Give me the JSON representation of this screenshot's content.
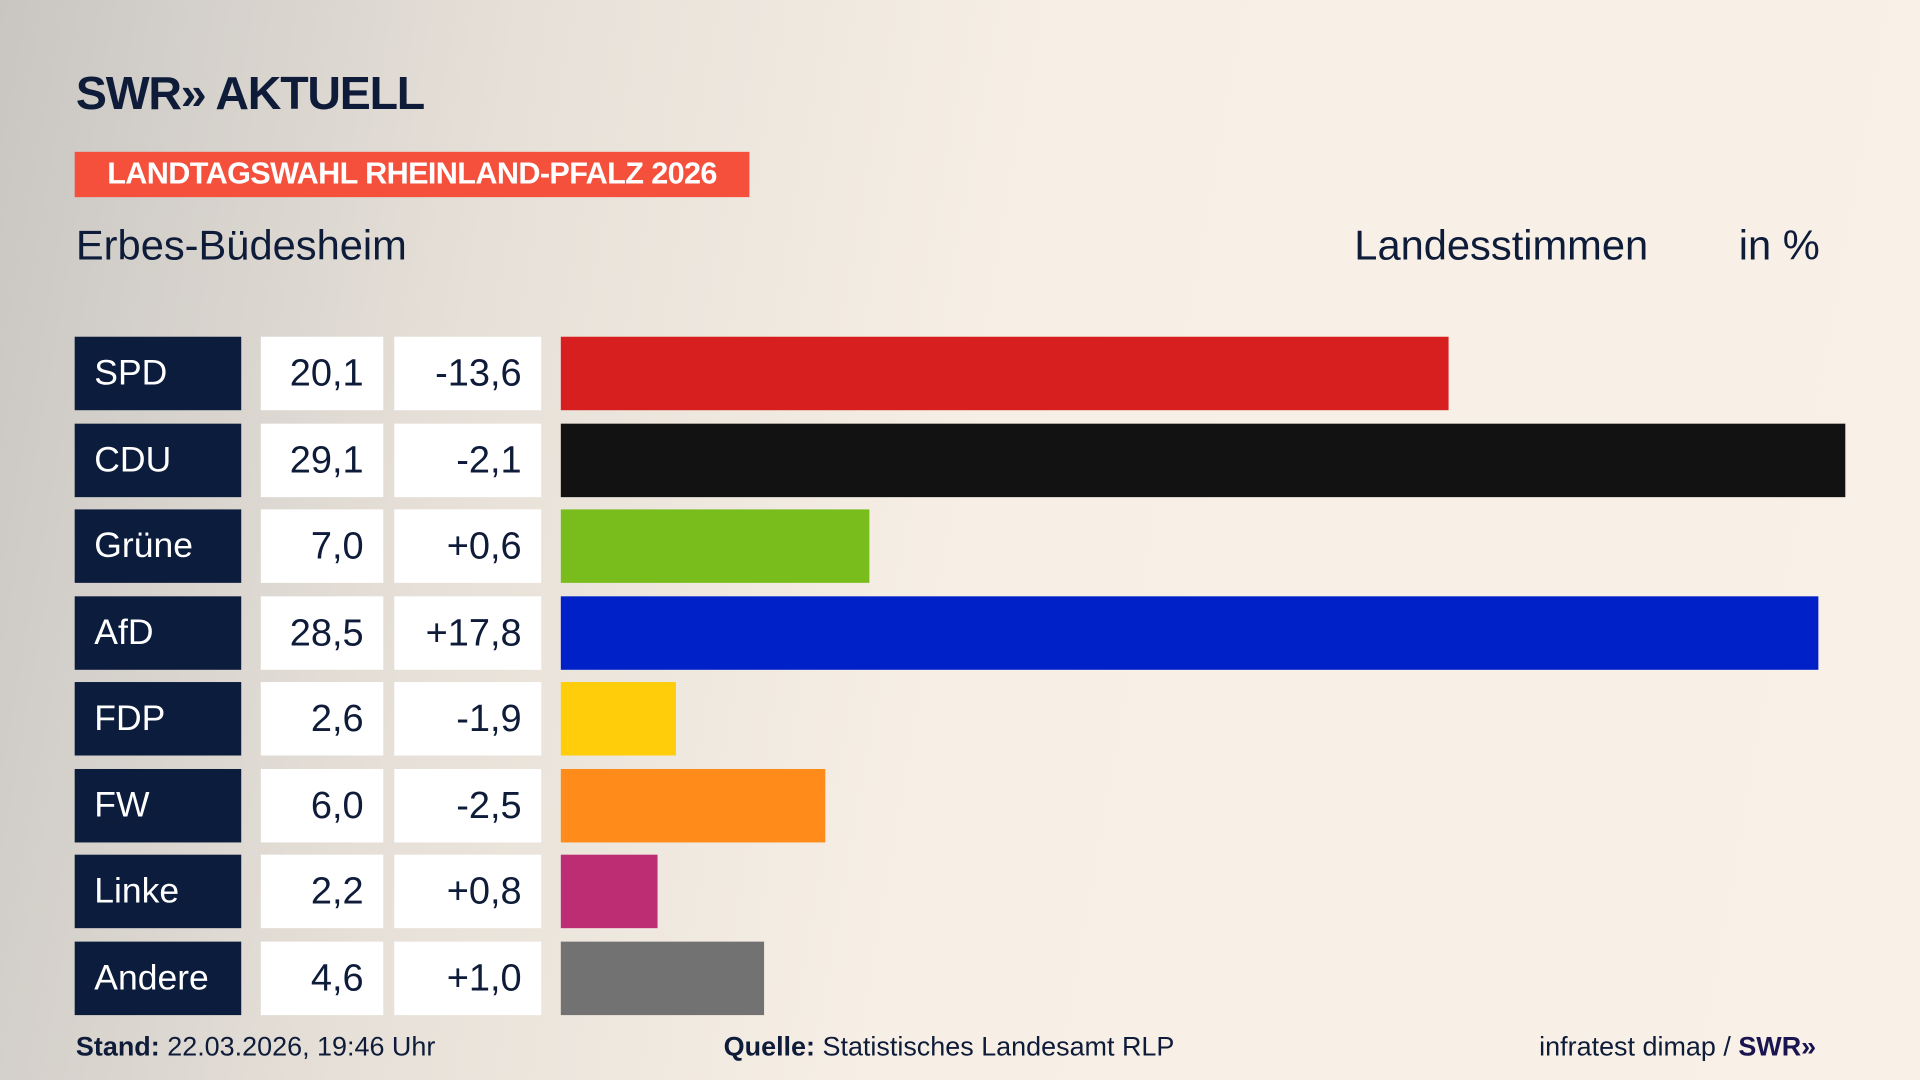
{
  "logo": "SWR» AKTUELL",
  "banner": "LANDTAGSWAHL RHEINLAND-PFALZ 2026",
  "location": "Erbes-Büdesheim",
  "measure": "Landesstimmen",
  "unit": "in %",
  "footer": {
    "stand_label": "Stand:",
    "stand_value": "22.03.2026, 19:46 Uhr",
    "source_label": "Quelle:",
    "source_value": "Statistisches Landesamt RLP",
    "credit": "infratest dimap / ",
    "credit_logo": "SWR»"
  },
  "chart_data": {
    "type": "bar",
    "orientation": "horizontal",
    "categories": [
      "SPD",
      "CDU",
      "Grüne",
      "AfD",
      "FDP",
      "FW",
      "Linke",
      "Andere"
    ],
    "values": [
      20.1,
      29.1,
      7.0,
      28.5,
      2.6,
      6.0,
      2.2,
      4.6
    ],
    "value_labels": [
      "20,1",
      "29,1",
      "7,0",
      "28,5",
      "2,6",
      "6,0",
      "2,2",
      "4,6"
    ],
    "change_labels": [
      "-13,6",
      "-2,1",
      "+0,6",
      "+17,8",
      "-1,9",
      "-2,5",
      "+0,8",
      "+1,0"
    ],
    "changes": [
      -13.6,
      -2.1,
      0.6,
      17.8,
      -1.9,
      -2.5,
      0.8,
      1.0
    ],
    "colors": [
      "#d81f1f",
      "#121212",
      "#79bd1c",
      "#0020c8",
      "#ffcd0a",
      "#ff8c1a",
      "#bd2d73",
      "#727272"
    ]
  }
}
